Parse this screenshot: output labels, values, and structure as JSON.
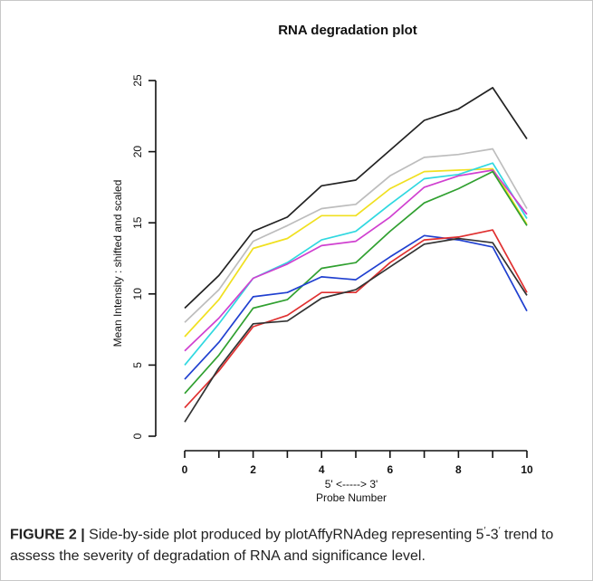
{
  "chart_data": {
    "type": "line",
    "title": "RNA degradation plot",
    "xlabel": "5' <-----> 3'",
    "xlabel2": "Probe Number",
    "ylabel": "Mean Intensity : shifted and scaled",
    "xlim": [
      0,
      10
    ],
    "ylim": [
      0,
      25
    ],
    "xticks": [
      "0",
      "2",
      "4",
      "6",
      "8",
      "10"
    ],
    "yticks": [
      "0",
      "5",
      "10",
      "15",
      "20",
      "25"
    ],
    "grid": false,
    "x": [
      0,
      1,
      2,
      3,
      4,
      5,
      6,
      7,
      8,
      9,
      10
    ],
    "series": [
      {
        "color": "#222222",
        "values": [
          9.0,
          11.3,
          14.4,
          15.4,
          17.6,
          18.0,
          20.1,
          22.2,
          23.0,
          24.5,
          20.9
        ]
      },
      {
        "color": "#bdbdbd",
        "values": [
          8.0,
          10.3,
          13.7,
          14.8,
          16.0,
          16.3,
          18.3,
          19.6,
          19.8,
          20.2,
          16.0
        ]
      },
      {
        "color": "#f0e020",
        "values": [
          7.0,
          9.6,
          13.2,
          13.9,
          15.5,
          15.5,
          17.4,
          18.6,
          18.7,
          18.8,
          14.9
        ]
      },
      {
        "color": "#30d8e0",
        "values": [
          5.0,
          7.9,
          11.1,
          12.2,
          13.8,
          14.4,
          16.3,
          18.1,
          18.4,
          19.2,
          15.3
        ]
      },
      {
        "color": "#d040d0",
        "values": [
          6.0,
          8.3,
          11.1,
          12.1,
          13.4,
          13.7,
          15.4,
          17.5,
          18.3,
          18.7,
          15.6
        ]
      },
      {
        "color": "#30a030",
        "values": [
          3.0,
          5.7,
          9.0,
          9.6,
          11.8,
          12.2,
          14.4,
          16.4,
          17.4,
          18.6,
          14.8
        ]
      },
      {
        "color": "#2040d0",
        "values": [
          4.0,
          6.6,
          9.8,
          10.1,
          11.2,
          11.0,
          12.6,
          14.1,
          13.8,
          13.3,
          8.8
        ]
      },
      {
        "color": "#e03030",
        "values": [
          2.0,
          4.6,
          7.7,
          8.5,
          10.1,
          10.1,
          12.2,
          13.8,
          14.0,
          14.5,
          10.1
        ]
      },
      {
        "color": "#333333",
        "values": [
          1.0,
          4.8,
          7.9,
          8.1,
          9.7,
          10.3,
          11.9,
          13.5,
          13.9,
          13.6,
          9.9
        ]
      }
    ]
  },
  "caption": {
    "label": "FIGURE 2 |",
    "text_before": " Side-by-side plot produced by plotAffyRNAdeg representing 5",
    "prime1": "′",
    "dash": "-3",
    "prime2": "′",
    "text_after": " trend to assess the severity of degradation of RNA and significance level."
  }
}
